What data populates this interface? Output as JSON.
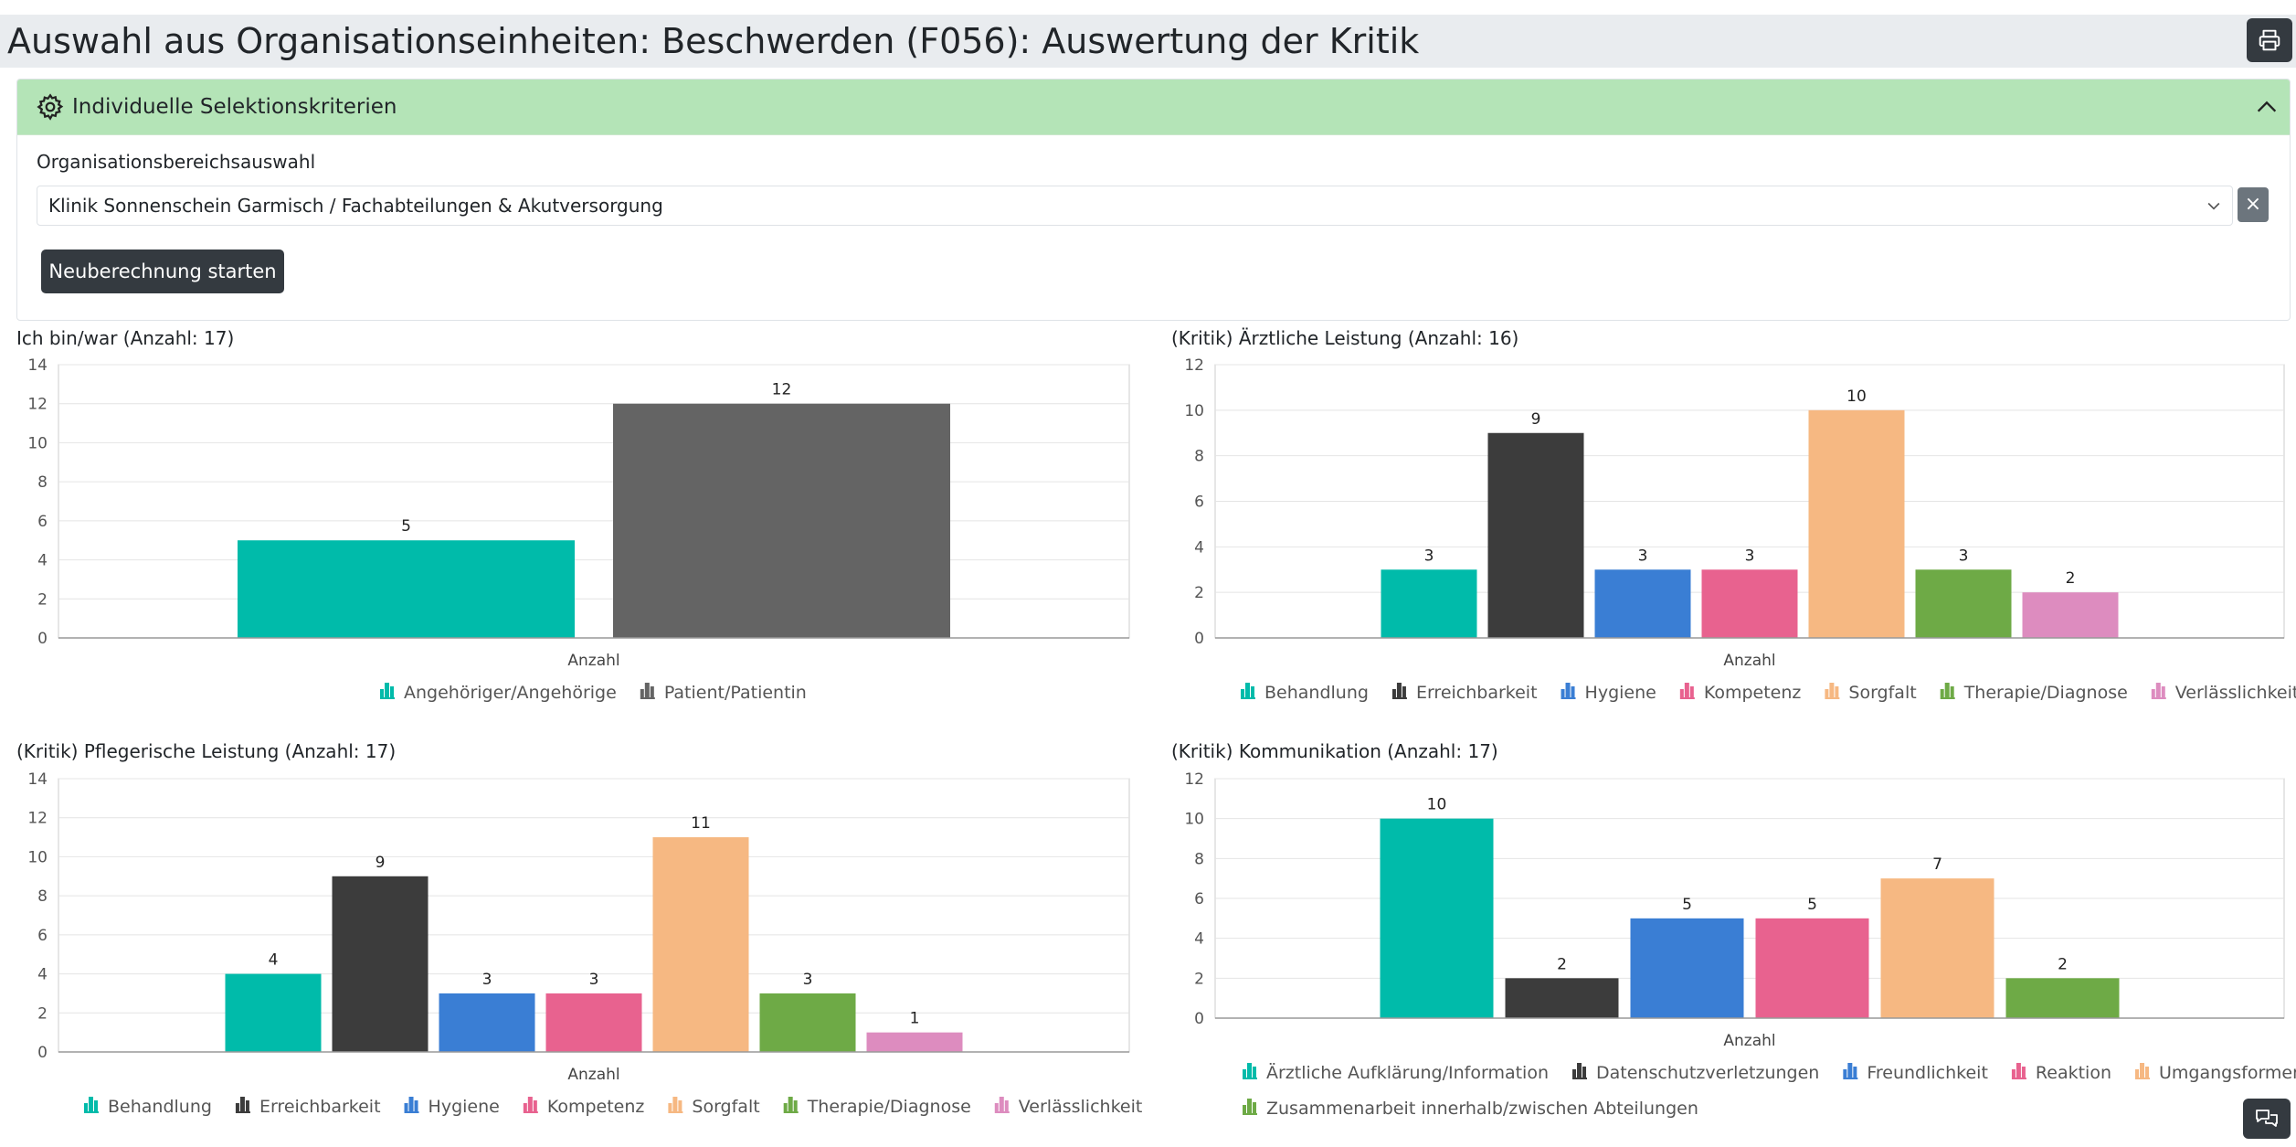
{
  "page": {
    "title": "Auswahl aus Organisationseinheiten: Beschwerden (F056): Auswertung der Kritik",
    "print_icon": "printer-icon",
    "feedback_icon": "chat-bubbles-icon"
  },
  "filter": {
    "header": "Individuelle Selektionskriterien",
    "header_icon": "gear-icon",
    "collapse_icon": "chevron-up-icon",
    "field_label": "Organisationsbereichsauswahl",
    "selected_value": "Klinik Sonnenschein Garmisch / Fachabteilungen & Akutversorgung",
    "clear_label": "×",
    "recalc_label": "Neuberechnung starten"
  },
  "colors": {
    "header_bg": "#b4e4b7",
    "dark_button": "#343a40"
  },
  "chart_data": [
    {
      "type": "bar",
      "title": "Ich bin/war (Anzahl: 17)",
      "xlabel": "Anzahl",
      "categories": [
        "Anzahl"
      ],
      "ylim": [
        0,
        14
      ],
      "ticks": [
        0,
        2,
        4,
        6,
        8,
        10,
        12,
        14
      ],
      "legend_position": "bottom",
      "series": [
        {
          "name": "Angehöriger/Angehörige",
          "values": [
            5
          ],
          "color": "#00bbaa"
        },
        {
          "name": "Patient/Patientin",
          "values": [
            12
          ],
          "color": "#646464"
        }
      ]
    },
    {
      "type": "bar",
      "title": "(Kritik) Ärztliche Leistung (Anzahl: 16)",
      "xlabel": "Anzahl",
      "categories": [
        "Anzahl"
      ],
      "ylim": [
        0,
        12
      ],
      "ticks": [
        0,
        2,
        4,
        6,
        8,
        10,
        12
      ],
      "legend_position": "bottom",
      "series": [
        {
          "name": "Behandlung",
          "values": [
            3
          ],
          "color": "#00bbaa"
        },
        {
          "name": "Erreichbarkeit",
          "values": [
            9
          ],
          "color": "#3c3c3c"
        },
        {
          "name": "Hygiene",
          "values": [
            3
          ],
          "color": "#3a7ed4"
        },
        {
          "name": "Kompetenz",
          "values": [
            3
          ],
          "color": "#e8628f"
        },
        {
          "name": "Sorgfalt",
          "values": [
            10
          ],
          "color": "#f6b882"
        },
        {
          "name": "Therapie/Diagnose",
          "values": [
            3
          ],
          "color": "#6eaa46"
        },
        {
          "name": "Verlässlichkeit",
          "values": [
            2
          ],
          "color": "#dd8cbf"
        }
      ]
    },
    {
      "type": "bar",
      "title": "(Kritik) Pflegerische Leistung (Anzahl: 17)",
      "xlabel": "Anzahl",
      "categories": [
        "Anzahl"
      ],
      "ylim": [
        0,
        14
      ],
      "ticks": [
        0,
        2,
        4,
        6,
        8,
        10,
        12,
        14
      ],
      "legend_position": "bottom",
      "series": [
        {
          "name": "Behandlung",
          "values": [
            4
          ],
          "color": "#00bbaa"
        },
        {
          "name": "Erreichbarkeit",
          "values": [
            9
          ],
          "color": "#3c3c3c"
        },
        {
          "name": "Hygiene",
          "values": [
            3
          ],
          "color": "#3a7ed4"
        },
        {
          "name": "Kompetenz",
          "values": [
            3
          ],
          "color": "#e8628f"
        },
        {
          "name": "Sorgfalt",
          "values": [
            11
          ],
          "color": "#f6b882"
        },
        {
          "name": "Therapie/Diagnose",
          "values": [
            3
          ],
          "color": "#6eaa46"
        },
        {
          "name": "Verlässlichkeit",
          "values": [
            1
          ],
          "color": "#dd8cbf"
        }
      ]
    },
    {
      "type": "bar",
      "title": "(Kritik) Kommunikation (Anzahl: 17)",
      "xlabel": "Anzahl",
      "categories": [
        "Anzahl"
      ],
      "ylim": [
        0,
        12
      ],
      "ticks": [
        0,
        2,
        4,
        6,
        8,
        10,
        12
      ],
      "legend_position": "bottom",
      "series": [
        {
          "name": "Ärztliche Aufklärung/Information",
          "values": [
            10
          ],
          "color": "#00bbaa"
        },
        {
          "name": "Datenschutzverletzungen",
          "values": [
            2
          ],
          "color": "#3c3c3c"
        },
        {
          "name": "Freundlichkeit",
          "values": [
            5
          ],
          "color": "#3a7ed4"
        },
        {
          "name": "Reaktion",
          "values": [
            5
          ],
          "color": "#e8628f"
        },
        {
          "name": "Umgangsformen",
          "values": [
            7
          ],
          "color": "#f6b882"
        },
        {
          "name": "Zusammenarbeit innerhalb/zwischen Abteilungen",
          "values": [
            2
          ],
          "color": "#6eaa46"
        }
      ]
    }
  ]
}
